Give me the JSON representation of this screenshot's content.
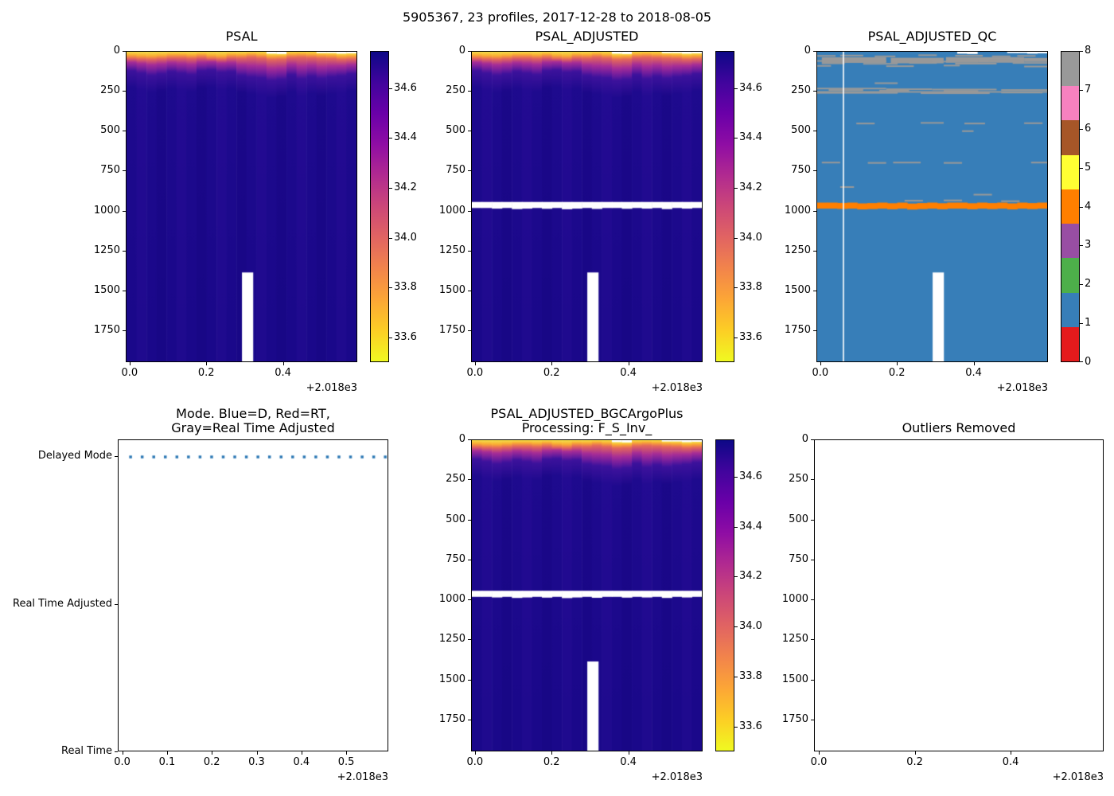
{
  "figure": {
    "suptitle": "5905367, 23 profiles, 2017-12-28 to 2018-08-05",
    "background": "#ffffff",
    "text_color": "#000000"
  },
  "chart_data": [
    {
      "id": "psal",
      "type": "heatmap",
      "title": "PSAL",
      "x_range": [
        2017.99,
        2018.594
      ],
      "x_ticks": [
        [
          2018.0,
          "0.0"
        ],
        [
          2018.2,
          "0.2"
        ],
        [
          2018.4,
          "0.4"
        ]
      ],
      "x_offset": "+2.018e3",
      "y_range": [
        0,
        1950
      ],
      "y_ticks": [
        0,
        250,
        500,
        750,
        1000,
        1250,
        1500,
        1750
      ],
      "n_profiles": 23,
      "colorbar": {
        "vmin": 33.5,
        "vmax": 34.75,
        "ticks": [
          34.6,
          34.4,
          34.2,
          34.0,
          33.8,
          33.6
        ],
        "cmap_top_to_bottom": [
          "#0d0887",
          "#41049d",
          "#6a00a8",
          "#8f0da4",
          "#b12a90",
          "#cc4778",
          "#e16462",
          "#f2844b",
          "#fca636",
          "#fcce25",
          "#f0f921"
        ]
      },
      "surface_stops": {
        "c0": "#f3df4c",
        "c1": "#fbae32",
        "c2": "#e4685c",
        "c3": "#a62d97",
        "c4": "#6a1c9e",
        "c5": "#3d129c"
      },
      "deep_colors": [
        "#1e0a8e",
        "#230b92",
        "#1b0889",
        "#260c95"
      ],
      "deep_colors2": [
        "#1a088a",
        "#1f0a8e",
        "#180786",
        "#220a90"
      ],
      "columns": [
        [
          0,
          20,
          120,
          0
        ],
        [
          0,
          24,
          135,
          1
        ],
        [
          0,
          26,
          150,
          0
        ],
        [
          0,
          22,
          140,
          2
        ],
        [
          0,
          16,
          125,
          0
        ],
        [
          0,
          16,
          135,
          1
        ],
        [
          0,
          20,
          145,
          0
        ],
        [
          0,
          14,
          120,
          2
        ],
        [
          0,
          22,
          115,
          0
        ],
        [
          0,
          26,
          130,
          1
        ],
        [
          0,
          16,
          125,
          0
        ],
        [
          0,
          18,
          150,
          2
        ],
        [
          0,
          12,
          160,
          0
        ],
        [
          0,
          18,
          165,
          1
        ],
        [
          12,
          16,
          170,
          0
        ],
        [
          14,
          12,
          160,
          2
        ],
        [
          0,
          14,
          145,
          0
        ],
        [
          0,
          12,
          170,
          1
        ],
        [
          0,
          15,
          155,
          0
        ],
        [
          8,
          11,
          160,
          2
        ],
        [
          8,
          13,
          150,
          0
        ],
        [
          12,
          15,
          140,
          1
        ],
        [
          10,
          14,
          130,
          0
        ]
      ],
      "white_bar": {
        "xf0": 0.502,
        "xf1": 0.551,
        "d0": 1390
      }
    },
    {
      "id": "adj",
      "type": "heatmap",
      "title": "PSAL_ADJUSTED",
      "x_range": [
        2017.99,
        2018.594
      ],
      "x_ticks": [
        [
          2018.0,
          "0.0"
        ],
        [
          2018.2,
          "0.2"
        ],
        [
          2018.4,
          "0.4"
        ]
      ],
      "x_offset": "+2.018e3",
      "y_range": [
        0,
        1950
      ],
      "y_ticks": [
        0,
        250,
        500,
        750,
        1000,
        1250,
        1500,
        1750
      ],
      "white_bar": {
        "xf0": 0.502,
        "xf1": 0.551,
        "d0": 1390
      },
      "white_band": {
        "d0": 946,
        "d1": 984,
        "jitter": [
          0,
          0,
          4,
          0,
          7,
          4,
          0,
          5,
          0,
          8,
          4,
          0,
          6,
          0,
          0,
          5,
          0,
          4,
          0,
          7,
          0,
          4,
          0
        ]
      }
    },
    {
      "id": "qc",
      "type": "categorical-heatmap",
      "title": "PSAL_ADJUSTED_QC",
      "x_range": [
        2017.99,
        2018.594
      ],
      "x_ticks": [
        [
          2018.0,
          "0.0"
        ],
        [
          2018.2,
          "0.2"
        ],
        [
          2018.4,
          "0.4"
        ]
      ],
      "x_offset": "+2.018e3",
      "y_range": [
        0,
        1950
      ],
      "y_ticks": [
        0,
        250,
        500,
        750,
        1000,
        1250,
        1500,
        1750
      ],
      "scale": {
        "values": [
          0,
          1,
          2,
          3,
          4,
          5,
          6,
          7,
          8
        ],
        "colors": [
          "#e41a1c",
          "#377eb8",
          "#4daf4a",
          "#984ea3",
          "#ff7f00",
          "#ffff33",
          "#a65628",
          "#f781bf",
          "#999999"
        ]
      },
      "body_value": 1,
      "dash_value": 8,
      "dash_color": "#999999",
      "orange_band": {
        "value": 4,
        "d0": 950,
        "d1": 988,
        "jitter": [
          0,
          0,
          2,
          0,
          5,
          3,
          0,
          4,
          0,
          6,
          3,
          0,
          4,
          0,
          0,
          4,
          0,
          3,
          0,
          5,
          0,
          3,
          0
        ]
      },
      "white_line_xf": 0.114,
      "white_bar": {
        "xf0": 0.502,
        "xf1": 0.551,
        "d0": 1390
      },
      "dashes": [
        [
          0.0,
          0.08,
          26
        ],
        [
          0.1,
          0.2,
          24
        ],
        [
          0.25,
          0.34,
          29
        ],
        [
          0.44,
          0.52,
          22
        ],
        [
          0.6,
          0.72,
          25
        ],
        [
          0.76,
          0.84,
          29
        ],
        [
          0.87,
          0.95,
          26
        ],
        [
          0.02,
          0.3,
          40,
          7
        ],
        [
          0.32,
          0.55,
          43,
          7
        ],
        [
          0.56,
          0.9,
          39,
          7
        ],
        [
          0.9,
          1.0,
          44,
          5
        ],
        [
          0.0,
          0.1,
          58
        ],
        [
          0.13,
          0.3,
          61
        ],
        [
          0.35,
          0.5,
          58
        ],
        [
          0.55,
          0.7,
          62
        ],
        [
          0.75,
          0.88,
          59
        ],
        [
          0.02,
          0.12,
          73
        ],
        [
          0.2,
          0.35,
          76
        ],
        [
          0.4,
          0.52,
          71
        ],
        [
          0.6,
          0.78,
          75
        ],
        [
          0.85,
          1.0,
          71
        ],
        [
          0.0,
          0.06,
          89
        ],
        [
          0.3,
          0.42,
          91
        ],
        [
          0.55,
          0.62,
          87
        ],
        [
          0.9,
          1.0,
          93
        ],
        [
          0.25,
          0.35,
          198
        ],
        [
          0.0,
          0.3,
          232
        ],
        [
          0.05,
          0.2,
          241
        ],
        [
          0.3,
          0.5,
          236
        ],
        [
          0.27,
          0.4,
          245
        ],
        [
          0.5,
          0.78,
          238
        ],
        [
          0.55,
          0.7,
          247
        ],
        [
          0.8,
          1.0,
          241
        ],
        [
          0.0,
          1.0,
          253
        ],
        [
          0.0,
          0.35,
          259
        ],
        [
          0.45,
          0.75,
          261
        ],
        [
          0.8,
          0.98,
          257
        ],
        [
          0.17,
          0.25,
          452
        ],
        [
          0.45,
          0.55,
          448
        ],
        [
          0.64,
          0.73,
          452
        ],
        [
          0.9,
          0.98,
          450
        ],
        [
          0.63,
          0.68,
          500
        ],
        [
          0.02,
          0.1,
          698
        ],
        [
          0.22,
          0.3,
          700
        ],
        [
          0.33,
          0.45,
          698
        ],
        [
          0.55,
          0.63,
          700
        ],
        [
          0.93,
          1.0,
          698
        ],
        [
          0.1,
          0.16,
          852
        ],
        [
          0.68,
          0.76,
          900
        ],
        [
          0.38,
          0.46,
          938
        ],
        [
          0.55,
          0.63,
          936
        ],
        [
          0.8,
          0.88,
          941
        ]
      ]
    },
    {
      "id": "mode",
      "type": "scatter",
      "title_lines": [
        "Mode. Blue=D, Red=RT,",
        "Gray=Real Time Adjusted"
      ],
      "x_range": [
        2017.99,
        2018.594
      ],
      "x_ticks": [
        [
          2018.0,
          "0.0"
        ],
        [
          2018.1,
          "0.1"
        ],
        [
          2018.2,
          "0.2"
        ],
        [
          2018.3,
          "0.3"
        ],
        [
          2018.4,
          "0.4"
        ],
        [
          2018.5,
          "0.5"
        ]
      ],
      "x_offset": "+2.018e3",
      "y_categories": [
        {
          "label": "Delayed Mode",
          "f": 0.054
        },
        {
          "label": "Real Time Adjusted",
          "f": 0.527
        },
        {
          "label": "Real Time",
          "f": 1.0
        }
      ],
      "legend_note": "Blue=D, Red=RT, Gray=Real Time Adjusted",
      "dot_color": "#2e79b5",
      "dot_size": 3.5,
      "dots_y_category": "Delayed Mode",
      "dots_x": [
        2018.017,
        2018.043,
        2018.069,
        2018.095,
        2018.121,
        2018.147,
        2018.173,
        2018.199,
        2018.225,
        2018.251,
        2018.277,
        2018.303,
        2018.329,
        2018.355,
        2018.381,
        2018.407,
        2018.433,
        2018.459,
        2018.485,
        2018.511,
        2018.537,
        2018.563,
        2018.589
      ]
    },
    {
      "id": "bgc",
      "type": "heatmap",
      "title_lines": [
        "PSAL_ADJUSTED_BGCArgoPlus",
        "Processing: F_S_Inv_"
      ],
      "x_range": [
        2017.99,
        2018.594
      ],
      "x_ticks": [
        [
          2018.0,
          "0.0"
        ],
        [
          2018.2,
          "0.2"
        ],
        [
          2018.4,
          "0.4"
        ]
      ],
      "x_offset": "+2.018e3",
      "y_range": [
        0,
        1950
      ],
      "y_ticks": [
        0,
        250,
        500,
        750,
        1000,
        1250,
        1500,
        1750
      ],
      "white_bar": {
        "xf0": 0.502,
        "xf1": 0.551,
        "d0": 1390
      },
      "white_band": {
        "d0": 946,
        "d1": 984,
        "jitter": [
          0,
          0,
          4,
          0,
          7,
          4,
          0,
          5,
          0,
          8,
          4,
          0,
          6,
          0,
          0,
          5,
          0,
          4,
          0,
          7,
          0,
          4,
          0
        ]
      }
    },
    {
      "id": "out",
      "type": "empty",
      "title": "Outliers Removed",
      "x_range": [
        2017.99,
        2018.594
      ],
      "x_ticks": [
        [
          2018.0,
          "0.0"
        ],
        [
          2018.2,
          "0.2"
        ],
        [
          2018.4,
          "0.4"
        ]
      ],
      "x_offset": "+2.018e3",
      "y_range": [
        0,
        1950
      ],
      "y_ticks": [
        0,
        250,
        500,
        750,
        1000,
        1250,
        1500,
        1750
      ]
    }
  ]
}
